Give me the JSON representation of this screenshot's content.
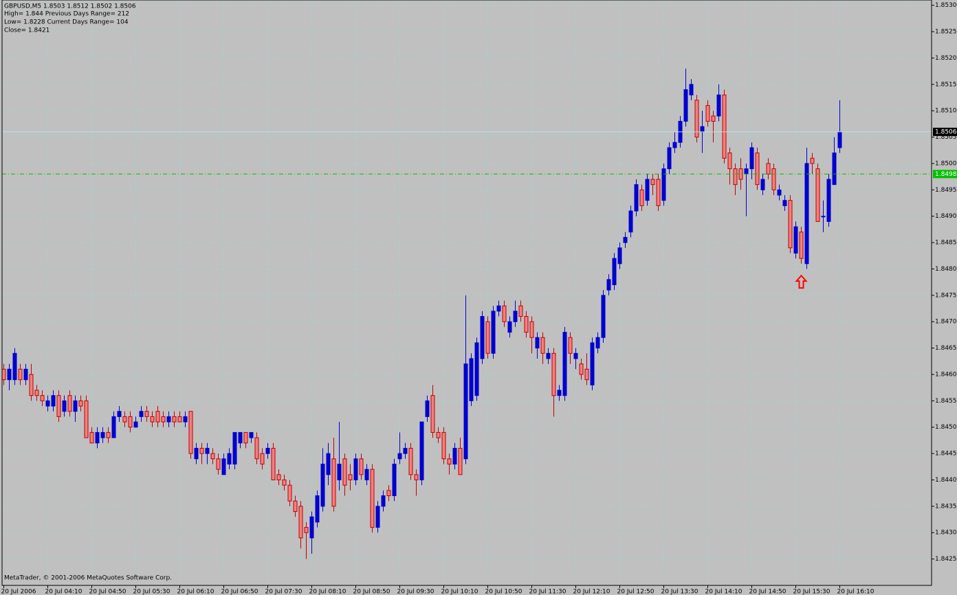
{
  "chart_data": {
    "type": "candlestick",
    "info": [
      "GBPUSD,M5  1.8503 1.8512 1.8502 1.8506",
      "High= 1.844    Previous Days Range= 212",
      "Low= 1.8228    Current Days Range= 104",
      "Close= 1.8421"
    ],
    "footer": "MetaTrader, © 2001-2006 MetaQuotes Software Corp.",
    "background": "#c0c0c0",
    "grid_color": "#a2d2d2",
    "grid": true,
    "bull_color": "#0000d0",
    "bear_fill": "#f08080",
    "bear_edge": "#c00000",
    "ylim": [
      1.842,
      1.8531
    ],
    "yticks": [
      1.8425,
      {
        "value": 1.843,
        "label": "1.8430"
      },
      1.8435,
      {
        "value": 1.844,
        "label": "1.8440"
      },
      1.8445,
      {
        "value": 1.845,
        "label": "1.8450"
      },
      1.8455,
      {
        "value": 1.846,
        "label": "1.8460"
      },
      1.8465,
      {
        "value": 1.847,
        "label": "1.8470"
      },
      1.8475,
      {
        "value": 1.848,
        "label": "1.8480"
      },
      1.8485,
      {
        "value": 1.849,
        "label": "1.8490"
      },
      1.8495,
      {
        "value": 1.85,
        "label": "1.8500"
      },
      1.8505,
      {
        "value": 1.851,
        "label": "1.8510"
      },
      1.8515,
      {
        "value": 1.852,
        "label": "1.8520"
      },
      1.8525,
      {
        "value": 1.853,
        "label": "1.8530"
      }
    ],
    "price_lines": [
      {
        "value": 1.8506,
        "color": "#b8e4ec",
        "dashed": false,
        "label_bg": "#000000",
        "label_color": "#ffffff"
      },
      {
        "value": 1.8498,
        "color": "#00c000",
        "dashed": true,
        "label_bg": "#00c000",
        "label_color": "#ffffff"
      }
    ],
    "signals": [
      {
        "index": 145,
        "price": 1.8479,
        "color": "#ff0000"
      }
    ],
    "categories": [
      "20 Jul 2006",
      null,
      null,
      null,
      null,
      null,
      null,
      null,
      "20 Jul 04:10",
      null,
      null,
      null,
      null,
      null,
      null,
      null,
      "20 Jul 04:50",
      null,
      null,
      null,
      null,
      null,
      null,
      null,
      "20 Jul 05:30",
      null,
      null,
      null,
      null,
      null,
      null,
      null,
      "20 Jul 06:10",
      null,
      null,
      null,
      null,
      null,
      null,
      null,
      "20 Jul 06:50",
      null,
      null,
      null,
      null,
      null,
      null,
      null,
      "20 Jul 07:30",
      null,
      null,
      null,
      null,
      null,
      null,
      null,
      "20 Jul 08:10",
      null,
      null,
      null,
      null,
      null,
      null,
      null,
      "20 Jul 08:50",
      null,
      null,
      null,
      null,
      null,
      null,
      null,
      "20 Jul 09:30",
      null,
      null,
      null,
      null,
      null,
      null,
      null,
      "20 Jul 10:10",
      null,
      null,
      null,
      null,
      null,
      null,
      null,
      "20 Jul 10:50",
      null,
      null,
      null,
      null,
      null,
      null,
      null,
      "20 Jul 11:30",
      null,
      null,
      null,
      null,
      null,
      null,
      null,
      "20 Jul 12:10",
      null,
      null,
      null,
      null,
      null,
      null,
      null,
      "20 Jul 12:50",
      null,
      null,
      null,
      null,
      null,
      null,
      null,
      "20 Jul 13:30",
      null,
      null,
      null,
      null,
      null,
      null,
      null,
      "20 Jul 14:10",
      null,
      null,
      null,
      null,
      null,
      null,
      null,
      "20 Jul 14:50",
      null,
      null,
      null,
      null,
      null,
      null,
      null,
      "20 Jul 15:30",
      null,
      null,
      null,
      null,
      null,
      null,
      null,
      "20 Jul 16:10"
    ],
    "ohlc": [
      [
        1.8461,
        1.8462,
        1.8458,
        1.8459
      ],
      [
        1.8459,
        1.8462,
        1.8457,
        1.8461
      ],
      [
        1.8459,
        1.8465,
        1.8458,
        1.8464
      ],
      [
        1.8461,
        1.8462,
        1.8458,
        1.8459
      ],
      [
        1.8459,
        1.8462,
        1.8458,
        1.8461
      ],
      [
        1.846,
        1.8462,
        1.8455,
        1.8456
      ],
      [
        1.8457,
        1.8458,
        1.8455,
        1.8456
      ],
      [
        1.8456,
        1.8457,
        1.8454,
        1.8455
      ],
      [
        1.8454,
        1.8456,
        1.8453,
        1.8455
      ],
      [
        1.8454,
        1.8457,
        1.8453,
        1.8456
      ],
      [
        1.8456,
        1.8457,
        1.8451,
        1.8452
      ],
      [
        1.8453,
        1.8456,
        1.8452,
        1.8455
      ],
      [
        1.8456,
        1.8457,
        1.8452,
        1.8453
      ],
      [
        1.8453,
        1.8456,
        1.8451,
        1.8455
      ],
      [
        1.8455,
        1.8456,
        1.8453,
        1.8454
      ],
      [
        1.8455,
        1.8456,
        1.8448,
        1.8448
      ],
      [
        1.8449,
        1.845,
        1.8447,
        1.8447
      ],
      [
        1.8447,
        1.845,
        1.8446,
        1.8449
      ],
      [
        1.8448,
        1.845,
        1.8447,
        1.8449
      ],
      [
        1.8449,
        1.845,
        1.8447,
        1.8448
      ],
      [
        1.8448,
        1.8453,
        1.8448,
        1.8452
      ],
      [
        1.8452,
        1.8454,
        1.8451,
        1.8453
      ],
      [
        1.8452,
        1.8453,
        1.845,
        1.8451
      ],
      [
        1.8452,
        1.8453,
        1.8449,
        1.845
      ],
      [
        1.845,
        1.8452,
        1.845,
        1.8451
      ],
      [
        1.8452,
        1.8454,
        1.8451,
        1.8453
      ],
      [
        1.8453,
        1.8454,
        1.8451,
        1.8452
      ],
      [
        1.8452,
        1.8453,
        1.845,
        1.8451
      ],
      [
        1.8453,
        1.8454,
        1.845,
        1.8451
      ],
      [
        1.8452,
        1.8453,
        1.845,
        1.8451
      ],
      [
        1.8451,
        1.8453,
        1.845,
        1.8452
      ],
      [
        1.8452,
        1.8453,
        1.845,
        1.8451
      ],
      [
        1.8452,
        1.8453,
        1.8451,
        1.8451
      ],
      [
        1.8451,
        1.8453,
        1.845,
        1.8452
      ],
      [
        1.8453,
        1.8453,
        1.8444,
        1.8445
      ],
      [
        1.8444,
        1.8447,
        1.8443,
        1.8446
      ],
      [
        1.8446,
        1.8447,
        1.8443,
        1.8445
      ],
      [
        1.8445,
        1.8447,
        1.8443,
        1.8446
      ],
      [
        1.8445,
        1.8446,
        1.8443,
        1.8444
      ],
      [
        1.8444,
        1.8445,
        1.8441,
        1.8442
      ],
      [
        1.8441,
        1.8445,
        1.8441,
        1.8444
      ],
      [
        1.8443,
        1.8446,
        1.8442,
        1.8445
      ],
      [
        1.8443,
        1.8449,
        1.8442,
        1.8449
      ],
      [
        1.8447,
        1.8449,
        1.8446,
        1.8449
      ],
      [
        1.8449,
        1.8449,
        1.8446,
        1.8447
      ],
      [
        1.8448,
        1.8449,
        1.8447,
        1.8449
      ],
      [
        1.8448,
        1.8449,
        1.8443,
        1.8444
      ],
      [
        1.8445,
        1.8446,
        1.8442,
        1.8443
      ],
      [
        1.8445,
        1.8447,
        1.8444,
        1.8446
      ],
      [
        1.8446,
        1.8447,
        1.844,
        1.844
      ],
      [
        1.8441,
        1.8442,
        1.8439,
        1.844
      ],
      [
        1.844,
        1.8441,
        1.8438,
        1.8439
      ],
      [
        1.8439,
        1.844,
        1.8435,
        1.8436
      ],
      [
        1.8436,
        1.8437,
        1.8433,
        1.8434
      ],
      [
        1.8435,
        1.8436,
        1.8427,
        1.8429
      ],
      [
        1.8431,
        1.8432,
        1.8425,
        1.843
      ],
      [
        1.8429,
        1.8434,
        1.8426,
        1.8433
      ],
      [
        1.8432,
        1.8438,
        1.8431,
        1.8437
      ],
      [
        1.8435,
        1.8446,
        1.8434,
        1.8443
      ],
      [
        1.8441,
        1.8447,
        1.8439,
        1.8445
      ],
      [
        1.8444,
        1.8448,
        1.8434,
        1.8435
      ],
      [
        1.844,
        1.8451,
        1.8438,
        1.8443
      ],
      [
        1.8444,
        1.8445,
        1.8437,
        1.8439
      ],
      [
        1.8441,
        1.8443,
        1.8438,
        1.844
      ],
      [
        1.844,
        1.8445,
        1.8439,
        1.8444
      ],
      [
        1.8444,
        1.8445,
        1.844,
        1.8441
      ],
      [
        1.844,
        1.8443,
        1.8439,
        1.8442
      ],
      [
        1.8442,
        1.8443,
        1.843,
        1.8431
      ],
      [
        1.8431,
        1.8436,
        1.843,
        1.8435
      ],
      [
        1.8435,
        1.8438,
        1.8434,
        1.8437
      ],
      [
        1.8438,
        1.8439,
        1.8436,
        1.8437
      ],
      [
        1.8437,
        1.8444,
        1.8436,
        1.8443
      ],
      [
        1.8444,
        1.8449,
        1.8443,
        1.8445
      ],
      [
        1.8445,
        1.8447,
        1.8444,
        1.8446
      ],
      [
        1.8446,
        1.8447,
        1.844,
        1.8441
      ],
      [
        1.8441,
        1.8442,
        1.8437,
        1.844
      ],
      [
        1.844,
        1.8451,
        1.8439,
        1.8451
      ],
      [
        1.8452,
        1.8456,
        1.8451,
        1.8455
      ],
      [
        1.8456,
        1.8458,
        1.8448,
        1.8449
      ],
      [
        1.8449,
        1.845,
        1.8447,
        1.8448
      ],
      [
        1.8449,
        1.845,
        1.8443,
        1.8444
      ],
      [
        1.8444,
        1.8445,
        1.8441,
        1.8443
      ],
      [
        1.8443,
        1.8447,
        1.8442,
        1.8446
      ],
      [
        1.8446,
        1.8448,
        1.8441,
        1.8441
      ],
      [
        1.8444,
        1.8475,
        1.8443,
        1.8462
      ],
      [
        1.8455,
        1.8464,
        1.8454,
        1.8463
      ],
      [
        1.8456,
        1.8467,
        1.8455,
        1.8466
      ],
      [
        1.8463,
        1.8472,
        1.8462,
        1.8471
      ],
      [
        1.847,
        1.8471,
        1.8463,
        1.8464
      ],
      [
        1.8464,
        1.8473,
        1.8463,
        1.8472
      ],
      [
        1.8472,
        1.8474,
        1.8471,
        1.8473
      ],
      [
        1.8473,
        1.8474,
        1.8469,
        1.847
      ],
      [
        1.8468,
        1.8471,
        1.8467,
        1.847
      ],
      [
        1.847,
        1.8474,
        1.8469,
        1.8472
      ],
      [
        1.8473,
        1.8474,
        1.847,
        1.8471
      ],
      [
        1.8471,
        1.8472,
        1.8467,
        1.8468
      ],
      [
        1.847,
        1.8471,
        1.8464,
        1.8467
      ],
      [
        1.8465,
        1.8468,
        1.8463,
        1.8467
      ],
      [
        1.8467,
        1.8468,
        1.8462,
        1.8464
      ],
      [
        1.8463,
        1.8465,
        1.8462,
        1.8464
      ],
      [
        1.8464,
        1.8465,
        1.8452,
        1.8456
      ],
      [
        1.8456,
        1.8458,
        1.8455,
        1.8457
      ],
      [
        1.8456,
        1.8469,
        1.8455,
        1.8468
      ],
      [
        1.8467,
        1.8468,
        1.8462,
        1.8464
      ],
      [
        1.8463,
        1.8465,
        1.8461,
        1.8464
      ],
      [
        1.8462,
        1.8463,
        1.8459,
        1.846
      ],
      [
        1.8461,
        1.8464,
        1.8458,
        1.8459
      ],
      [
        1.8458,
        1.8467,
        1.8457,
        1.8466
      ],
      [
        1.8465,
        1.8468,
        1.8464,
        1.8467
      ],
      [
        1.8467,
        1.8476,
        1.8466,
        1.8475
      ],
      [
        1.8476,
        1.8479,
        1.8475,
        1.8478
      ],
      [
        1.8477,
        1.8483,
        1.8476,
        1.8482
      ],
      [
        1.8481,
        1.8485,
        1.848,
        1.8484
      ],
      [
        1.8485,
        1.8487,
        1.8484,
        1.8486
      ],
      [
        1.8487,
        1.8492,
        1.8486,
        1.8491
      ],
      [
        1.8491,
        1.8497,
        1.849,
        1.8496
      ],
      [
        1.8495,
        1.8496,
        1.8491,
        1.8492
      ],
      [
        1.8493,
        1.8498,
        1.8492,
        1.8497
      ],
      [
        1.8497,
        1.8498,
        1.8494,
        1.8496
      ],
      [
        1.8497,
        1.8498,
        1.8491,
        1.8492
      ],
      [
        1.8493,
        1.85,
        1.8492,
        1.8499
      ],
      [
        1.8499,
        1.8504,
        1.8498,
        1.8503
      ],
      [
        1.8503,
        1.8506,
        1.8502,
        1.8504
      ],
      [
        1.8504,
        1.8509,
        1.8503,
        1.8508
      ],
      [
        1.8508,
        1.8518,
        1.8507,
        1.8514
      ],
      [
        1.8513,
        1.8516,
        1.8512,
        1.8515
      ],
      [
        1.8512,
        1.8513,
        1.8504,
        1.8505
      ],
      [
        1.8506,
        1.851,
        1.8502,
        1.8507
      ],
      [
        1.8511,
        1.8512,
        1.8507,
        1.8508
      ],
      [
        1.8509,
        1.851,
        1.8504,
        1.8508
      ],
      [
        1.8509,
        1.8515,
        1.8508,
        1.8513
      ],
      [
        1.8513,
        1.8514,
        1.85,
        1.8501
      ],
      [
        1.8502,
        1.8503,
        1.8496,
        1.8499
      ],
      [
        1.8499,
        1.85,
        1.8494,
        1.8496
      ],
      [
        1.8499,
        1.8501,
        1.8495,
        1.8497
      ],
      [
        1.8498,
        1.85,
        1.849,
        1.8499
      ],
      [
        1.8499,
        1.8504,
        1.8497,
        1.8503
      ],
      [
        1.8502,
        1.8503,
        1.8495,
        1.8496
      ],
      [
        1.8495,
        1.8498,
        1.8494,
        1.8497
      ],
      [
        1.85,
        1.8501,
        1.8497,
        1.8498
      ],
      [
        1.8499,
        1.85,
        1.8494,
        1.8495
      ],
      [
        1.8494,
        1.8496,
        1.8493,
        1.8495
      ],
      [
        1.8492,
        1.8494,
        1.8491,
        1.8493
      ],
      [
        1.8493,
        1.8494,
        1.8483,
        1.8484
      ],
      [
        1.8483,
        1.8489,
        1.8482,
        1.8488
      ],
      [
        1.8487,
        1.8488,
        1.8481,
        1.8482
      ],
      [
        1.8481,
        1.8503,
        1.848,
        1.85
      ],
      [
        1.8501,
        1.8502,
        1.8498,
        1.85
      ],
      [
        1.8499,
        1.85,
        1.8489,
        1.8489
      ],
      [
        1.849,
        1.8493,
        1.8487,
        1.849
      ],
      [
        1.8489,
        1.8498,
        1.8488,
        1.8497
      ],
      [
        1.8496,
        1.8505,
        1.8496,
        1.8502
      ],
      [
        1.8503,
        1.8512,
        1.8502,
        1.8506
      ]
    ]
  }
}
